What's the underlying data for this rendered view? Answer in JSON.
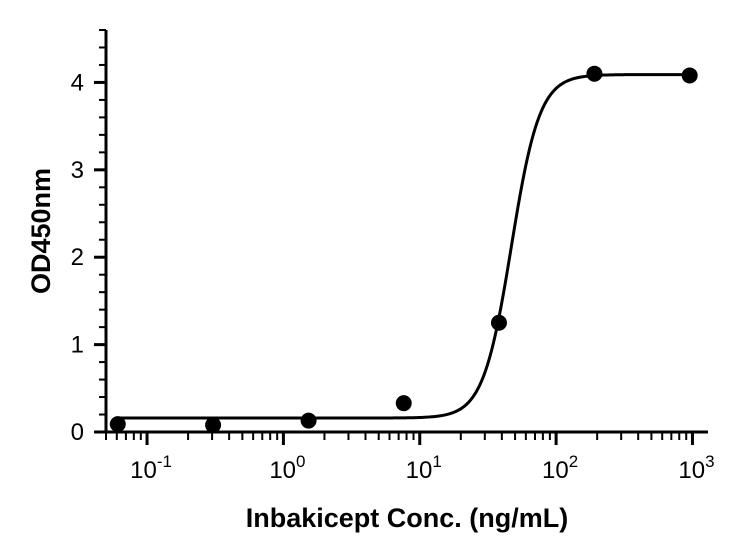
{
  "chart_data": {
    "type": "scatter",
    "title": "",
    "xlabel": "Inbakicept Conc. (ng/mL)",
    "ylabel": "OD450nm",
    "xscale": "log",
    "xlim": [
      0.05,
      1300
    ],
    "ylim": [
      0,
      4.6
    ],
    "grid": false,
    "legend": "none",
    "x_ticks": [
      {
        "value": 0.1,
        "base": "10",
        "exp": "-1"
      },
      {
        "value": 1,
        "base": "10",
        "exp": "0"
      },
      {
        "value": 10,
        "base": "10",
        "exp": "1"
      },
      {
        "value": 100,
        "base": "10",
        "exp": "2"
      },
      {
        "value": 1000,
        "base": "10",
        "exp": "3"
      }
    ],
    "y_ticks": [
      0,
      1,
      2,
      3,
      4
    ],
    "series": [
      {
        "points": [
          {
            "x": 0.061,
            "y": 0.09
          },
          {
            "x": 0.305,
            "y": 0.08
          },
          {
            "x": 1.53,
            "y": 0.13
          },
          {
            "x": 7.63,
            "y": 0.33
          },
          {
            "x": 38.1,
            "y": 1.25
          },
          {
            "x": 191,
            "y": 4.1
          },
          {
            "x": 954,
            "y": 4.08
          }
        ],
        "fit": {
          "model": "4PL",
          "bottom": 0.16,
          "top": 4.09,
          "ec50": 47,
          "hill": 4.2
        },
        "color": "#000000"
      }
    ]
  }
}
